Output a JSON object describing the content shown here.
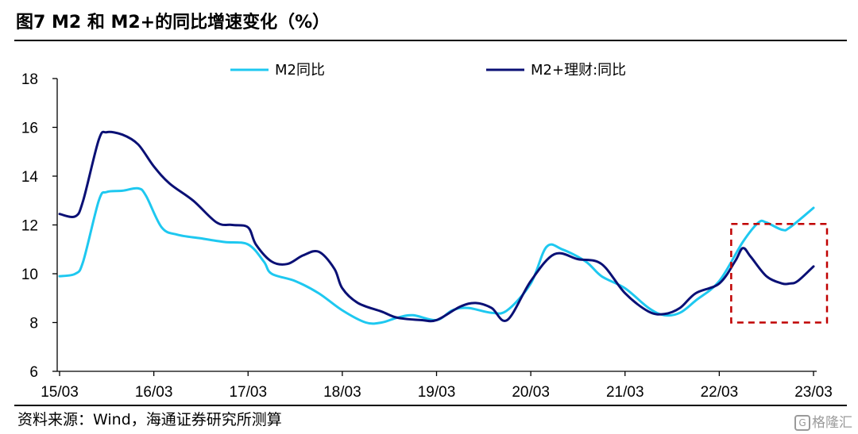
{
  "title": "图7   M2 和 M2+的同比增速变化（%）",
  "source": "资料来源：Wind，海通证券研究所测算",
  "watermark": "格隆汇",
  "chart_data": {
    "type": "line",
    "ylim": [
      6,
      18
    ],
    "yticks": [
      6,
      8,
      10,
      12,
      14,
      16,
      18
    ],
    "xticks": [
      "15/03",
      "16/03",
      "17/03",
      "18/03",
      "19/03",
      "20/03",
      "21/03",
      "22/03",
      "23/03"
    ],
    "grid": false,
    "legend_position": "top",
    "highlight_box": {
      "x_from": "2022-03",
      "x_to": "2023-03",
      "y_from": 8,
      "y_to": 12.3,
      "style": "dashed",
      "color": "#c00000"
    },
    "series": [
      {
        "name": "M2同比",
        "color": "#1ec8f0",
        "points": [
          [
            "2015-03",
            9.9
          ],
          [
            "2015-05",
            10.0
          ],
          [
            "2015-06",
            10.5
          ],
          [
            "2015-08",
            13.0
          ],
          [
            "2015-09",
            13.35
          ],
          [
            "2015-11",
            13.4
          ],
          [
            "2016-01",
            13.5
          ],
          [
            "2016-02",
            13.2
          ],
          [
            "2016-04",
            11.9
          ],
          [
            "2016-06",
            11.6
          ],
          [
            "2016-09",
            11.45
          ],
          [
            "2016-12",
            11.3
          ],
          [
            "2017-03",
            11.2
          ],
          [
            "2017-05",
            10.5
          ],
          [
            "2017-06",
            10.0
          ],
          [
            "2017-09",
            9.7
          ],
          [
            "2017-12",
            9.2
          ],
          [
            "2018-03",
            8.5
          ],
          [
            "2018-06",
            8.0
          ],
          [
            "2018-08",
            8.0
          ],
          [
            "2018-10",
            8.2
          ],
          [
            "2018-12",
            8.3
          ],
          [
            "2019-03",
            8.1
          ],
          [
            "2019-05",
            8.5
          ],
          [
            "2019-07",
            8.6
          ],
          [
            "2019-10",
            8.4
          ],
          [
            "2019-12",
            8.5
          ],
          [
            "2020-03",
            9.6
          ],
          [
            "2020-05",
            11.1
          ],
          [
            "2020-07",
            11.0
          ],
          [
            "2020-10",
            10.5
          ],
          [
            "2020-12",
            9.9
          ],
          [
            "2021-03",
            9.4
          ],
          [
            "2021-06",
            8.6
          ],
          [
            "2021-08",
            8.3
          ],
          [
            "2021-10",
            8.4
          ],
          [
            "2021-12",
            8.9
          ],
          [
            "2022-03",
            9.7
          ],
          [
            "2022-06",
            11.3
          ],
          [
            "2022-08",
            12.1
          ],
          [
            "2022-09",
            12.1
          ],
          [
            "2022-11",
            11.8
          ],
          [
            "2022-12",
            11.9
          ],
          [
            "2023-03",
            12.7
          ]
        ]
      },
      {
        "name": "M2+理财:同比",
        "color": "#0a1075",
        "points": [
          [
            "2015-03",
            12.45
          ],
          [
            "2015-05",
            12.35
          ],
          [
            "2015-06",
            13.0
          ],
          [
            "2015-08",
            15.5
          ],
          [
            "2015-09",
            15.8
          ],
          [
            "2015-11",
            15.7
          ],
          [
            "2016-01",
            15.3
          ],
          [
            "2016-03",
            14.4
          ],
          [
            "2016-05",
            13.7
          ],
          [
            "2016-08",
            13.0
          ],
          [
            "2016-11",
            12.1
          ],
          [
            "2017-01",
            12.0
          ],
          [
            "2017-03",
            11.9
          ],
          [
            "2017-04",
            11.2
          ],
          [
            "2017-06",
            10.5
          ],
          [
            "2017-08",
            10.4
          ],
          [
            "2017-10",
            10.75
          ],
          [
            "2017-12",
            10.9
          ],
          [
            "2018-02",
            10.2
          ],
          [
            "2018-03",
            9.4
          ],
          [
            "2018-05",
            8.8
          ],
          [
            "2018-08",
            8.45
          ],
          [
            "2018-10",
            8.2
          ],
          [
            "2019-01",
            8.1
          ],
          [
            "2019-03",
            8.1
          ],
          [
            "2019-06",
            8.65
          ],
          [
            "2019-08",
            8.8
          ],
          [
            "2019-10",
            8.6
          ],
          [
            "2019-12",
            8.1
          ],
          [
            "2020-03",
            9.7
          ],
          [
            "2020-06",
            10.8
          ],
          [
            "2020-09",
            10.6
          ],
          [
            "2020-12",
            10.4
          ],
          [
            "2021-03",
            9.2
          ],
          [
            "2021-06",
            8.45
          ],
          [
            "2021-08",
            8.35
          ],
          [
            "2021-10",
            8.6
          ],
          [
            "2021-12",
            9.2
          ],
          [
            "2022-03",
            9.6
          ],
          [
            "2022-05",
            10.5
          ],
          [
            "2022-06",
            11.05
          ],
          [
            "2022-07",
            10.7
          ],
          [
            "2022-09",
            9.9
          ],
          [
            "2022-11",
            9.6
          ],
          [
            "2022-12",
            9.6
          ],
          [
            "2023-01",
            9.7
          ],
          [
            "2023-03",
            10.3
          ]
        ]
      }
    ]
  }
}
